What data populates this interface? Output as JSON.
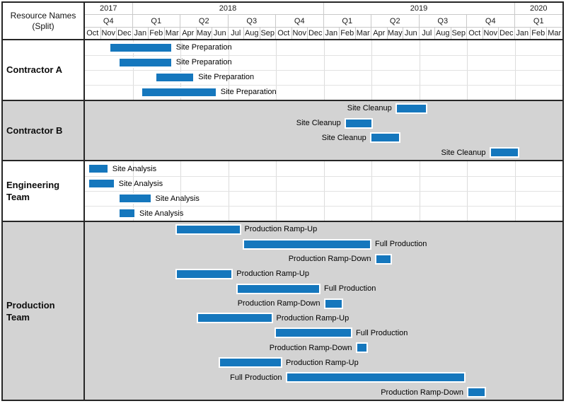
{
  "corner": {
    "line1": "Resource Names",
    "line2": "(Split)"
  },
  "chart_data": {
    "type": "gantt",
    "corner_label": "Resource Names (Split)",
    "timeline": {
      "start_month": "Oct 2017",
      "end_month": "Mar 2020",
      "months_total": 30,
      "years": [
        {
          "label": "2017",
          "span": 3
        },
        {
          "label": "2018",
          "span": 12
        },
        {
          "label": "2019",
          "span": 12
        },
        {
          "label": "2020",
          "span": 3
        }
      ],
      "quarters": [
        "Q4",
        "Q1",
        "Q2",
        "Q3",
        "Q4",
        "Q1",
        "Q2",
        "Q3",
        "Q4",
        "Q1"
      ],
      "months": [
        "Oct",
        "Nov",
        "Dec",
        "Jan",
        "Feb",
        "Mar",
        "Apr",
        "May",
        "Jun",
        "Jul",
        "Aug",
        "Sep",
        "Oct",
        "Nov",
        "Dec",
        "Jan",
        "Feb",
        "Mar",
        "Apr",
        "May",
        "Jun",
        "Jul",
        "Aug",
        "Sep",
        "Oct",
        "Nov",
        "Dec",
        "Jan",
        "Feb",
        "Mar"
      ]
    },
    "bands": [
      {
        "name": "Contractor A",
        "background": "#ffffff",
        "rows": 4,
        "bars": [
          {
            "row": 0,
            "start": 1.5,
            "end": 5.5,
            "label": "Site Preparation",
            "label_side": "right"
          },
          {
            "row": 1,
            "start": 2.1,
            "end": 5.5,
            "label": "Site Preparation",
            "label_side": "right"
          },
          {
            "row": 2,
            "start": 4.4,
            "end": 6.9,
            "label": "Site Preparation",
            "label_side": "right"
          },
          {
            "row": 3,
            "start": 3.5,
            "end": 8.3,
            "label": "Site Preparation",
            "label_side": "right"
          }
        ]
      },
      {
        "name": "Contractor B",
        "background": "#d3d3d3",
        "rows": 4,
        "bars": [
          {
            "row": 0,
            "start": 19.5,
            "end": 21.5,
            "label": "Site Cleanup",
            "label_side": "left"
          },
          {
            "row": 1,
            "start": 16.3,
            "end": 18.1,
            "label": "Site Cleanup",
            "label_side": "left"
          },
          {
            "row": 2,
            "start": 17.9,
            "end": 19.8,
            "label": "Site Cleanup",
            "label_side": "left"
          },
          {
            "row": 3,
            "start": 25.4,
            "end": 27.3,
            "label": "Site Cleanup",
            "label_side": "left"
          }
        ]
      },
      {
        "name": "Engineering Team",
        "background": "#ffffff",
        "rows": 4,
        "bars": [
          {
            "row": 0,
            "start": 0.2,
            "end": 1.5,
            "label": "Site Analysis",
            "label_side": "right"
          },
          {
            "row": 1,
            "start": 0.2,
            "end": 1.9,
            "label": "Site Analysis",
            "label_side": "right"
          },
          {
            "row": 2,
            "start": 2.1,
            "end": 4.2,
            "label": "Site Analysis",
            "label_side": "right"
          },
          {
            "row": 3,
            "start": 2.1,
            "end": 3.2,
            "label": "Site Analysis",
            "label_side": "right"
          }
        ]
      },
      {
        "name": "Production Team",
        "background": "#d3d3d3",
        "rows": 12,
        "bars": [
          {
            "row": 0,
            "start": 5.7,
            "end": 9.8,
            "label": "Production Ramp-Up",
            "label_side": "right"
          },
          {
            "row": 1,
            "start": 9.9,
            "end": 18.0,
            "label": "Full Production",
            "label_side": "right"
          },
          {
            "row": 2,
            "start": 18.2,
            "end": 19.3,
            "label": "Production Ramp-Down",
            "label_side": "left"
          },
          {
            "row": 3,
            "start": 5.7,
            "end": 9.3,
            "label": "Production Ramp-Up",
            "label_side": "right"
          },
          {
            "row": 4,
            "start": 9.5,
            "end": 14.8,
            "label": "Full Production",
            "label_side": "right"
          },
          {
            "row": 5,
            "start": 15.0,
            "end": 16.2,
            "label": "Production Ramp-Down",
            "label_side": "left"
          },
          {
            "row": 6,
            "start": 7.0,
            "end": 11.8,
            "label": "Production Ramp-Up",
            "label_side": "right"
          },
          {
            "row": 7,
            "start": 11.9,
            "end": 16.8,
            "label": "Full Production",
            "label_side": "right"
          },
          {
            "row": 8,
            "start": 17.0,
            "end": 17.8,
            "label": "Production Ramp-Down",
            "label_side": "left"
          },
          {
            "row": 9,
            "start": 8.4,
            "end": 12.4,
            "label": "Production Ramp-Up",
            "label_side": "right"
          },
          {
            "row": 10,
            "start": 12.6,
            "end": 23.9,
            "label": "Full Production",
            "label_side": "left"
          },
          {
            "row": 11,
            "start": 24.0,
            "end": 25.2,
            "label": "Production Ramp-Down",
            "label_side": "left"
          }
        ]
      }
    ],
    "colors": {
      "bar_fill": "#1577bd",
      "bar_border": "#ffffff",
      "band_gray": "#d3d3d3",
      "band_white": "#ffffff",
      "grid_line": "#dcdcdc",
      "header_line": "#c9c9c9",
      "border_dark": "#262626"
    }
  }
}
